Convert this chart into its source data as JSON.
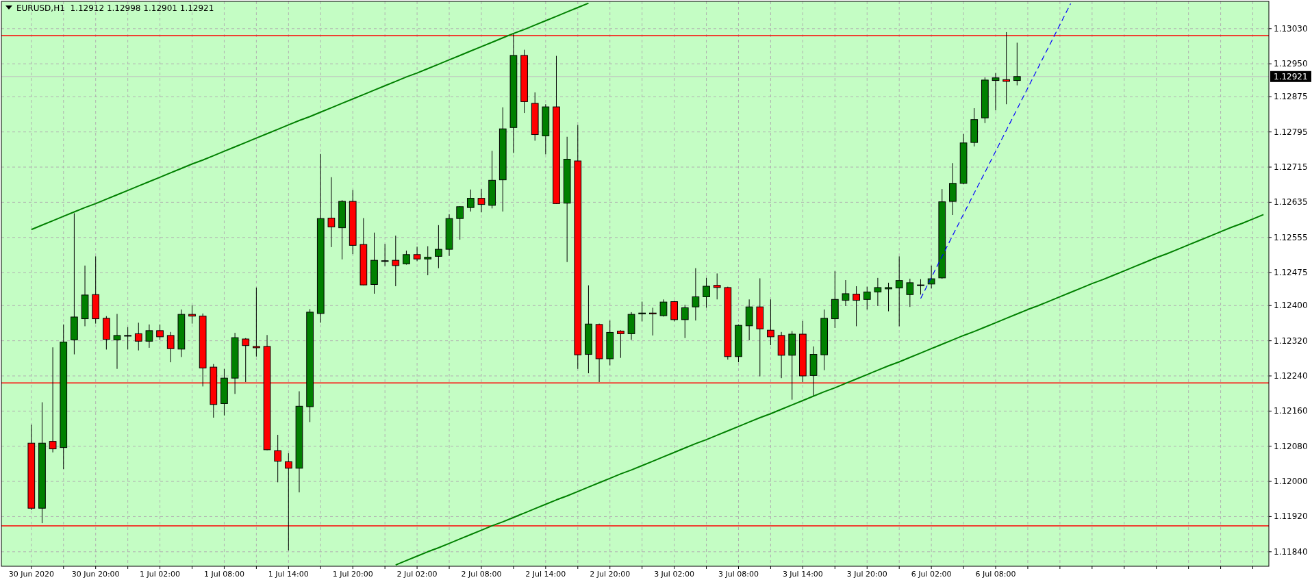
{
  "chart_data": {
    "type": "candlestick",
    "title": "EURUSD,H1  1.12912 1.12998 1.12901 1.12921",
    "categories": [
      "30 Jun 2020",
      null,
      null,
      null,
      null,
      null,
      "30 Jun 20:00",
      null,
      null,
      null,
      null,
      null,
      "1 Jul 02:00",
      null,
      null,
      null,
      null,
      null,
      "1 Jul 08:00",
      null,
      null,
      null,
      null,
      null,
      "1 Jul 14:00",
      null,
      null,
      null,
      null,
      null,
      "1 Jul 20:00",
      null,
      null,
      null,
      null,
      null,
      "2 Jul 02:00",
      null,
      null,
      null,
      null,
      null,
      "2 Jul 08:00",
      null,
      null,
      null,
      null,
      null,
      "2 Jul 14:00",
      null,
      null,
      null,
      null,
      null,
      "2 Jul 20:00",
      null,
      null,
      null,
      null,
      null,
      "3 Jul 02:00",
      null,
      null,
      null,
      null,
      null,
      "3 Jul 08:00",
      null,
      null,
      null,
      null,
      null,
      "3 Jul 14:00",
      null,
      null,
      null,
      null,
      null,
      "3 Jul 20:00",
      null,
      null,
      null,
      null,
      null,
      "6 Jul 02:00",
      null,
      null,
      null,
      null,
      null,
      "6 Jul 08:00",
      null,
      null,
      null,
      null,
      null,
      null,
      null,
      null,
      null,
      null,
      null,
      null,
      null,
      null,
      null,
      null,
      null,
      null,
      null,
      null,
      null,
      null,
      null,
      null,
      null
    ],
    "ohlc": [
      [
        1.12087,
        1.12129,
        1.11935,
        1.11939
      ],
      [
        1.11939,
        1.1218,
        1.11905,
        1.12087
      ],
      [
        1.12091,
        1.12305,
        1.12066,
        1.12074
      ],
      [
        1.12077,
        1.12357,
        1.12028,
        1.12317
      ],
      [
        1.12322,
        1.1261,
        1.12289,
        1.12374
      ],
      [
        1.1237,
        1.12491,
        1.12353,
        1.12424
      ],
      [
        1.12425,
        1.12512,
        1.12359,
        1.1237
      ],
      [
        1.12371,
        1.12376,
        1.123,
        1.12323
      ],
      [
        1.12322,
        1.12381,
        1.12256,
        1.12332
      ],
      [
        1.12332,
        1.12351,
        1.123,
        1.12332
      ],
      [
        1.12336,
        1.12361,
        1.12298,
        1.12319
      ],
      [
        1.12319,
        1.12357,
        1.12304,
        1.12343
      ],
      [
        1.12343,
        1.12357,
        1.12322,
        1.12329
      ],
      [
        1.12332,
        1.1234,
        1.12271,
        1.12302
      ],
      [
        1.12301,
        1.12391,
        1.12283,
        1.1238
      ],
      [
        1.1238,
        1.12401,
        1.12359,
        1.12376
      ],
      [
        1.12376,
        1.12382,
        1.12216,
        1.12258
      ],
      [
        1.1226,
        1.12267,
        1.12145,
        1.12175
      ],
      [
        1.12177,
        1.12256,
        1.1215,
        1.12235
      ],
      [
        1.12235,
        1.12338,
        1.12199,
        1.12327
      ],
      [
        1.12324,
        1.12326,
        1.12226,
        1.12309
      ],
      [
        1.12307,
        1.12441,
        1.12284,
        1.12304
      ],
      [
        1.12307,
        1.12333,
        1.12071,
        1.12072
      ],
      [
        1.1207,
        1.12106,
        1.11998,
        1.12046
      ],
      [
        1.12045,
        1.12064,
        1.11843,
        1.1203
      ],
      [
        1.1203,
        1.12205,
        1.11975,
        1.12171
      ],
      [
        1.1217,
        1.12392,
        1.12135,
        1.12385
      ],
      [
        1.12382,
        1.12745,
        1.12361,
        1.12598
      ],
      [
        1.12599,
        1.12692,
        1.12533,
        1.12579
      ],
      [
        1.12577,
        1.1264,
        1.12505,
        1.12637
      ],
      [
        1.12637,
        1.12663,
        1.12517,
        1.12537
      ],
      [
        1.12539,
        1.12599,
        1.12446,
        1.12447
      ],
      [
        1.12448,
        1.12566,
        1.12427,
        1.12503
      ],
      [
        1.12502,
        1.1254,
        1.1249,
        1.12502
      ],
      [
        1.12503,
        1.12559,
        1.12444,
        1.12491
      ],
      [
        1.12495,
        1.12525,
        1.12493,
        1.12516
      ],
      [
        1.12516,
        1.12534,
        1.12501,
        1.12506
      ],
      [
        1.12506,
        1.12535,
        1.12469,
        1.1251
      ],
      [
        1.12512,
        1.12583,
        1.12485,
        1.12528
      ],
      [
        1.12528,
        1.12608,
        1.12513,
        1.12598
      ],
      [
        1.12598,
        1.12626,
        1.1255,
        1.12625
      ],
      [
        1.12623,
        1.12664,
        1.12614,
        1.12644
      ],
      [
        1.12644,
        1.12665,
        1.12612,
        1.1263
      ],
      [
        1.12628,
        1.12752,
        1.12621,
        1.12685
      ],
      [
        1.12686,
        1.12851,
        1.12614,
        1.12802
      ],
      [
        1.12805,
        1.13018,
        1.12747,
        1.12969
      ],
      [
        1.12969,
        1.12982,
        1.12838,
        1.12864
      ],
      [
        1.1286,
        1.12885,
        1.12775,
        1.12789
      ],
      [
        1.12786,
        1.12858,
        1.12744,
        1.12852
      ],
      [
        1.12852,
        1.12968,
        1.12631,
        1.12632
      ],
      [
        1.12633,
        1.12784,
        1.12499,
        1.12733
      ],
      [
        1.12729,
        1.12811,
        1.12256,
        1.12288
      ],
      [
        1.12289,
        1.12446,
        1.12246,
        1.12358
      ],
      [
        1.12357,
        1.12359,
        1.12226,
        1.12279
      ],
      [
        1.12279,
        1.12366,
        1.12264,
        1.12339
      ],
      [
        1.12342,
        1.12344,
        1.12281,
        1.12336
      ],
      [
        1.12336,
        1.12385,
        1.12322,
        1.1238
      ],
      [
        1.12381,
        1.12409,
        1.12364,
        1.12383
      ],
      [
        1.12383,
        1.12395,
        1.12332,
        1.12381
      ],
      [
        1.12377,
        1.12414,
        1.12375,
        1.12408
      ],
      [
        1.12409,
        1.12411,
        1.12364,
        1.12368
      ],
      [
        1.12368,
        1.12402,
        1.12326,
        1.12395
      ],
      [
        1.12397,
        1.12485,
        1.12366,
        1.1242
      ],
      [
        1.1242,
        1.12463,
        1.12395,
        1.12444
      ],
      [
        1.12446,
        1.12473,
        1.12414,
        1.12441
      ],
      [
        1.12441,
        1.12443,
        1.12277,
        1.12284
      ],
      [
        1.12284,
        1.12357,
        1.12271,
        1.12355
      ],
      [
        1.12354,
        1.12414,
        1.12321,
        1.12397
      ],
      [
        1.12397,
        1.12462,
        1.12239,
        1.12347
      ],
      [
        1.12344,
        1.12414,
        1.1231,
        1.12329
      ],
      [
        1.12332,
        1.1234,
        1.12235,
        1.12287
      ],
      [
        1.12287,
        1.12342,
        1.12186,
        1.12335
      ],
      [
        1.12335,
        1.12365,
        1.12226,
        1.1224
      ],
      [
        1.12241,
        1.12307,
        1.12194,
        1.12289
      ],
      [
        1.12288,
        1.12391,
        1.12253,
        1.12371
      ],
      [
        1.1237,
        1.12478,
        1.12349,
        1.12414
      ],
      [
        1.12412,
        1.12458,
        1.12399,
        1.12427
      ],
      [
        1.12426,
        1.12444,
        1.12353,
        1.12412
      ],
      [
        1.12414,
        1.12443,
        1.12391,
        1.12431
      ],
      [
        1.12431,
        1.12463,
        1.12399,
        1.12441
      ],
      [
        1.12438,
        1.12452,
        1.12387,
        1.12441
      ],
      [
        1.1244,
        1.12512,
        1.12353,
        1.12457
      ],
      [
        1.12425,
        1.12461,
        1.12397,
        1.12452
      ],
      [
        1.12447,
        1.1246,
        1.12425,
        1.12447
      ],
      [
        1.12449,
        1.12491,
        1.12439,
        1.12461
      ],
      [
        1.12463,
        1.12665,
        1.12461,
        1.12636
      ],
      [
        1.12637,
        1.12724,
        1.12606,
        1.12678
      ],
      [
        1.12678,
        1.1279,
        1.12676,
        1.1277
      ],
      [
        1.12771,
        1.12849,
        1.12762,
        1.12823
      ],
      [
        1.12827,
        1.12919,
        1.12815,
        1.12913
      ],
      [
        1.12912,
        1.12929,
        1.12844,
        1.12918
      ],
      [
        1.12914,
        1.13022,
        1.12858,
        1.1291
      ],
      [
        1.12912,
        1.12998,
        1.12901,
        1.12921
      ],
      null,
      null,
      null,
      null,
      null,
      null,
      null,
      null,
      null,
      null,
      null,
      null,
      null,
      null,
      null,
      null,
      null,
      null,
      null,
      null,
      null,
      null,
      null
    ],
    "series": [
      {
        "type": "line",
        "color": "#008000",
        "values": [
          1.12573,
          1.12583,
          1.12593,
          1.12603,
          1.12613,
          1.12623,
          1.12632,
          1.12642,
          1.12652,
          1.12662,
          1.12672,
          1.12682,
          1.12692,
          1.12702,
          1.12712,
          1.12722,
          1.12731,
          1.12741,
          1.12751,
          1.12761,
          1.12771,
          1.12781,
          1.12791,
          1.12801,
          1.12811,
          1.12821,
          1.1283,
          1.1284,
          1.1285,
          1.1286,
          1.1287,
          1.1288,
          1.1289,
          1.129,
          1.1291,
          1.1292,
          1.12929,
          1.12939,
          1.12949,
          1.12959,
          1.12969,
          1.12979,
          1.12989,
          1.12999,
          1.13009,
          1.13019,
          1.13028,
          1.13038,
          1.13048,
          1.13058,
          1.13068,
          1.13078,
          1.13088,
          null,
          null,
          null,
          null,
          null,
          null,
          null,
          null,
          null,
          null,
          null,
          null,
          null,
          null,
          null,
          null,
          null,
          null,
          null,
          null,
          null,
          null,
          null,
          null,
          null,
          null,
          null,
          null,
          null,
          null,
          null,
          null,
          null,
          null,
          null,
          null,
          null,
          null,
          null,
          null,
          null,
          null,
          null,
          null,
          null,
          null,
          null,
          null,
          null,
          null,
          null,
          null,
          null,
          null,
          null,
          null,
          null,
          null,
          null,
          null,
          null,
          null,
          null
        ]
      },
      {
        "type": "line",
        "color": "#008000",
        "values": [
          null,
          null,
          null,
          null,
          null,
          null,
          null,
          null,
          null,
          null,
          null,
          null,
          null,
          null,
          null,
          null,
          null,
          null,
          null,
          null,
          null,
          null,
          null,
          null,
          null,
          null,
          null,
          null,
          null,
          null,
          null,
          null,
          null,
          null,
          1.1181,
          1.1182,
          1.1183,
          1.1184,
          1.11849,
          1.11859,
          1.11869,
          1.11879,
          1.11889,
          1.11899,
          1.11908,
          1.11918,
          1.11928,
          1.11938,
          1.11948,
          1.11958,
          1.11967,
          1.11977,
          1.11987,
          1.11997,
          1.12007,
          1.12017,
          1.12026,
          1.12036,
          1.12046,
          1.12056,
          1.12066,
          1.12076,
          1.12086,
          1.12095,
          1.12105,
          1.12115,
          1.12125,
          1.12135,
          1.12145,
          1.12154,
          1.12164,
          1.12174,
          1.12184,
          1.12194,
          1.12204,
          1.12213,
          1.12223,
          1.12233,
          1.12243,
          1.12253,
          1.12263,
          1.12272,
          1.12282,
          1.12292,
          1.12302,
          1.12312,
          1.12322,
          1.12332,
          1.12341,
          1.12351,
          1.12361,
          1.12371,
          1.12381,
          1.12391,
          1.124,
          1.1241,
          1.1242,
          1.1243,
          1.1244,
          1.1245,
          1.12459,
          1.12469,
          1.12479,
          1.12489,
          1.12499,
          1.12509,
          1.12518,
          1.12528,
          1.12538,
          1.12548,
          1.12558,
          1.12568,
          1.12578,
          1.12587,
          1.12597,
          1.12607
        ]
      },
      {
        "type": "line",
        "color": "#0000ff",
        "line_style": "dashed",
        "values": [
          null,
          null,
          null,
          null,
          null,
          null,
          null,
          null,
          null,
          null,
          null,
          null,
          null,
          null,
          null,
          null,
          null,
          null,
          null,
          null,
          null,
          null,
          null,
          null,
          null,
          null,
          null,
          null,
          null,
          null,
          null,
          null,
          null,
          null,
          null,
          null,
          null,
          null,
          null,
          null,
          null,
          null,
          null,
          null,
          null,
          null,
          null,
          null,
          null,
          null,
          null,
          null,
          null,
          null,
          null,
          null,
          null,
          null,
          null,
          null,
          null,
          null,
          null,
          null,
          null,
          null,
          null,
          null,
          null,
          null,
          null,
          null,
          null,
          null,
          null,
          null,
          null,
          null,
          null,
          null,
          null,
          null,
          null,
          1.12416,
          1.12464,
          1.12512,
          1.1256,
          1.12608,
          1.12656,
          1.12703,
          1.12751,
          1.12799,
          1.12847,
          1.12895,
          1.12943,
          1.12991,
          1.13039,
          1.13087,
          null,
          null,
          null,
          null,
          null,
          null,
          null,
          null,
          null,
          null,
          null,
          null,
          null,
          null,
          null,
          null,
          null,
          null
        ]
      }
    ],
    "ylim": [
      1.11807,
      1.13092
    ],
    "yticks": [
      {
        "value": 1.1184,
        "label": "1.11840"
      },
      {
        "value": 1.1192,
        "label": "1.11920"
      },
      {
        "value": 1.12,
        "label": "1.12000"
      },
      {
        "value": 1.1208,
        "label": "1.12080"
      },
      {
        "value": 1.1216,
        "label": "1.12160"
      },
      {
        "value": 1.1224,
        "label": "1.12240"
      },
      {
        "value": 1.1232,
        "label": "1.12320"
      },
      {
        "value": 1.124,
        "label": "1.12400"
      },
      {
        "value": 1.12475,
        "label": "1.12475"
      },
      {
        "value": 1.12555,
        "label": "1.12555"
      },
      {
        "value": 1.12635,
        "label": "1.12635"
      },
      {
        "value": 1.12715,
        "label": "1.12715"
      },
      {
        "value": 1.12795,
        "label": "1.12795"
      },
      {
        "value": 1.12875,
        "label": "1.12875"
      },
      {
        "value": 1.1295,
        "label": "1.12950"
      },
      {
        "value": 1.1303,
        "label": "1.13030"
      }
    ],
    "ref_lines": [
      {
        "axis": "y",
        "value": 1.13014,
        "color": "#ff0000"
      },
      {
        "axis": "y",
        "value": 1.12224,
        "color": "#ff0000"
      },
      {
        "axis": "y",
        "value": 1.11899,
        "color": "#ff0000"
      },
      {
        "axis": "y",
        "value": 1.12921,
        "label": "1.12921",
        "color": "#c0c0c0"
      }
    ],
    "grid": true
  }
}
